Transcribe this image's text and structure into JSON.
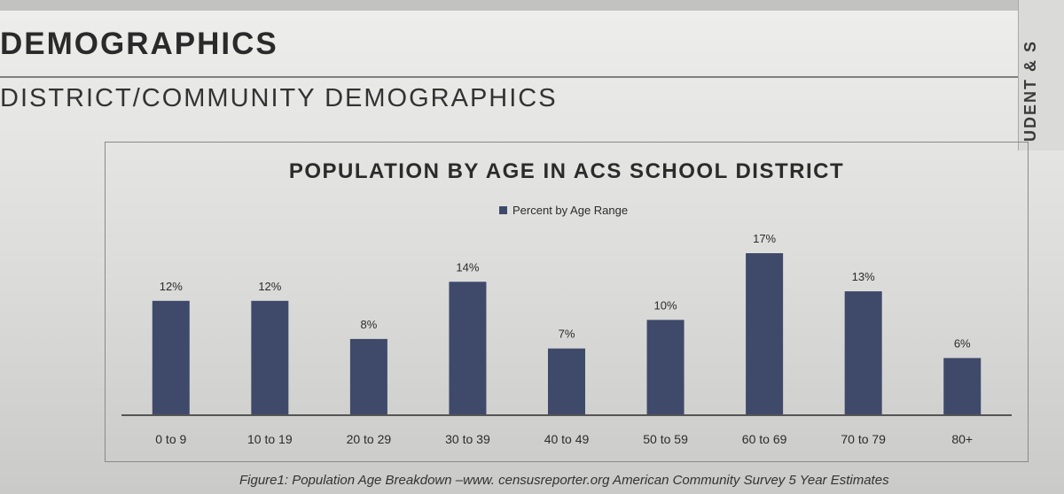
{
  "page": {
    "section_title": "DEMOGRAPHICS",
    "subsection_title": "DISTRICT/COMMUNITY DEMOGRAPHICS",
    "side_tab": "UDENT & S",
    "caption": "Figure1: Population Age Breakdown –www. censusreporter.org American Community Survey 5 Year Estimates"
  },
  "colors": {
    "bar": "#3f4a6a"
  },
  "chart_data": {
    "type": "bar",
    "title": "POPULATION BY AGE IN ACS SCHOOL DISTRICT",
    "legend": "Percent by Age Range",
    "legend_position": "top-center",
    "categories": [
      "0 to 9",
      "10 to 19",
      "20 to 29",
      "30 to 39",
      "40 to 49",
      "50 to 59",
      "60 to 69",
      "70 to 79",
      "80+"
    ],
    "values": [
      12,
      12,
      8,
      14,
      7,
      10,
      17,
      13,
      6
    ],
    "value_labels": [
      "12%",
      "12%",
      "8%",
      "14%",
      "7%",
      "10%",
      "17%",
      "13%",
      "6%"
    ],
    "unit": "%",
    "xlabel": "",
    "ylabel": "",
    "ylim": [
      0,
      17
    ],
    "grid": false
  }
}
